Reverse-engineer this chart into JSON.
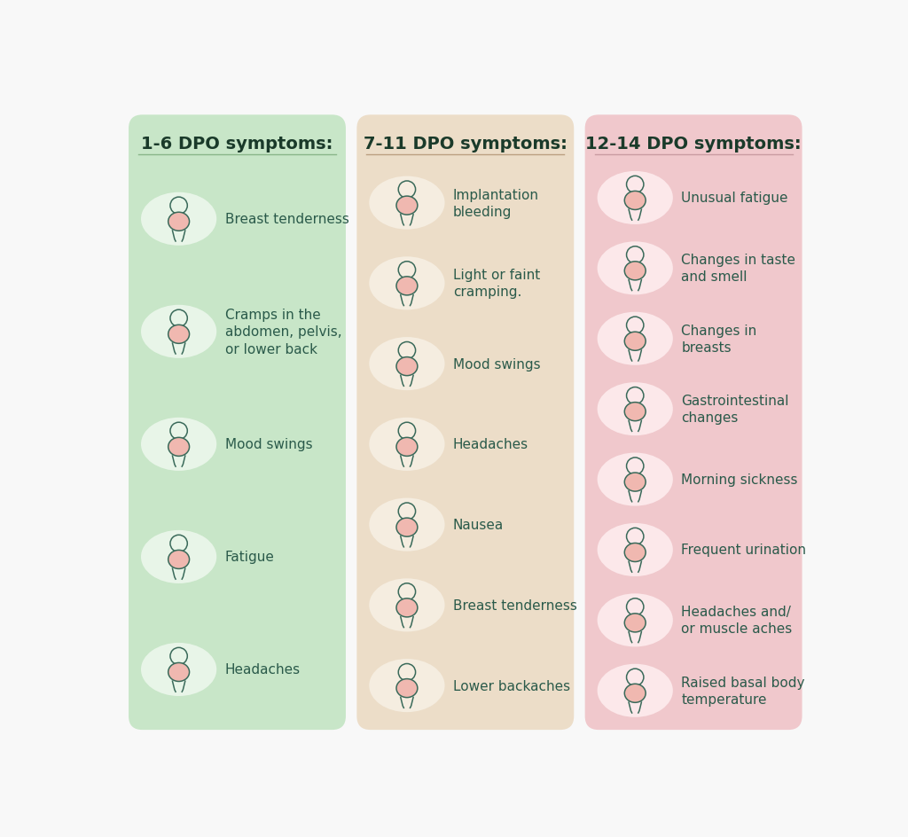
{
  "background_color": "#f8f8f8",
  "columns": [
    {
      "title": "1-6 DPO symptoms:",
      "bg_color": "#c8e6c8",
      "ellipse_color": "#e8f5e8",
      "title_color": "#1a3a2a",
      "text_color": "#2a5a4a",
      "divider_color": "#7aaa7a",
      "items": [
        "Breast tenderness",
        "Cramps in the\nabdomen, pelvis,\nor lower back",
        "Mood swings",
        "Fatigue",
        "Headaches"
      ]
    },
    {
      "title": "7-11 DPO symptoms:",
      "bg_color": "#ecddc8",
      "ellipse_color": "#f5ede0",
      "title_color": "#1a3a2a",
      "text_color": "#2a5a4a",
      "divider_color": "#b09070",
      "items": [
        "Implantation\nbleeding",
        "Light or faint\ncramping.",
        "Mood swings",
        "Headaches",
        "Nausea",
        "Breast tenderness",
        "Lower backaches"
      ]
    },
    {
      "title": "12-14 DPO symptoms:",
      "bg_color": "#f0c8cc",
      "ellipse_color": "#fce8ea",
      "title_color": "#1a3a2a",
      "text_color": "#2a5a4a",
      "divider_color": "#c09098",
      "items": [
        "Unusual fatigue",
        "Changes in taste\nand smell",
        "Changes in\nbreasts",
        "Gastrointestinal\nchanges",
        "Morning sickness",
        "Frequent urination",
        "Headaches and/\nor muscle aches",
        "Raised basal body\ntemperature"
      ]
    }
  ]
}
